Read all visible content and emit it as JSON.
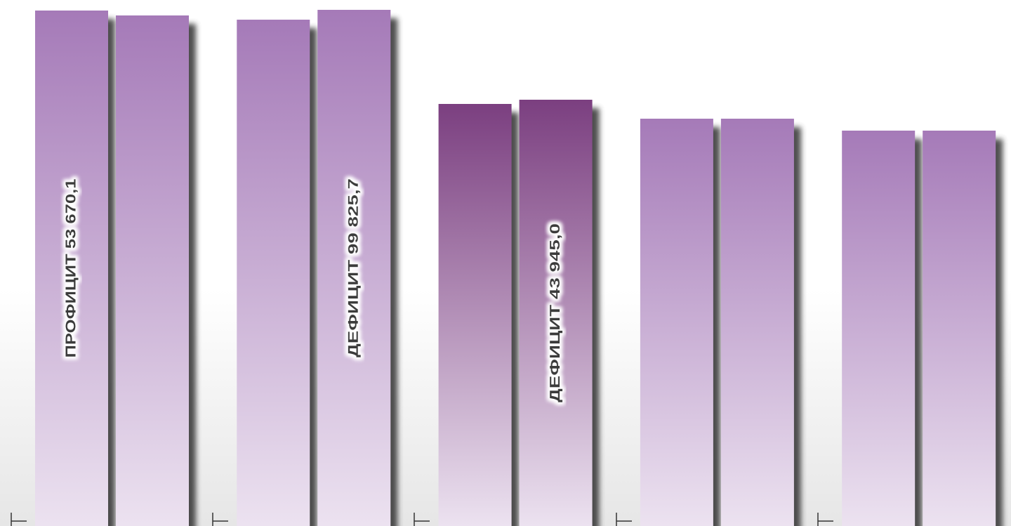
{
  "chart_data": {
    "type": "bar",
    "categories": [
      null,
      null,
      null,
      null,
      null
    ],
    "series": [
      {
        "colors": [
          "#a57ab8",
          "#a57ab8",
          "#7b3f80",
          "#a57ab8",
          "#a57ab8"
        ],
        "values": [
          734,
          721,
          601,
          580,
          563
        ]
      },
      {
        "colors": [
          "#a57ab8",
          "#a57ab8",
          "#7b3f80",
          "#a57ab8",
          "#a57ab8"
        ],
        "values": [
          727,
          735,
          607,
          580,
          563
        ]
      }
    ],
    "ylim": [
      0,
      749
    ],
    "annotations": [
      "ПРОФИЦИТ 53 670,1",
      "ДЕФИЦИТ 99 825,7",
      "ДЕФИЦИТ 43 945,0"
    ]
  }
}
